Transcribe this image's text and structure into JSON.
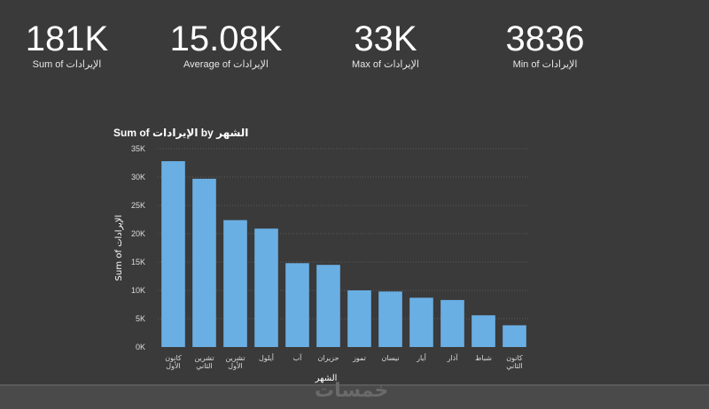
{
  "kpis": [
    {
      "value": "181K",
      "label": "Sum of الإيرادات"
    },
    {
      "value": "15.08K",
      "label": "Average of الإيرادات"
    },
    {
      "value": "33K",
      "label": "Max of الإيرادات"
    },
    {
      "value": "3836",
      "label": "Min of الإيرادات"
    }
  ],
  "watermark": "خمسات",
  "colors": {
    "bar": "#6aafe4",
    "background": "#3a3a3a",
    "grid": "#5a5a5a"
  },
  "chart_data": {
    "type": "bar",
    "title": "Sum of الإيرادات by الشهر",
    "xlabel": "الشهر",
    "ylabel": "Sum of الإيرادات",
    "ylim": [
      0,
      35000
    ],
    "yticks": [
      "0K",
      "5K",
      "10K",
      "15K",
      "20K",
      "25K",
      "30K",
      "35K"
    ],
    "grid": true,
    "categories": [
      [
        "كانون",
        "الأول"
      ],
      [
        "تشرين",
        "الثاني"
      ],
      [
        "تشرين",
        "الأول"
      ],
      [
        "أيلول"
      ],
      [
        "آب"
      ],
      [
        "حزيران"
      ],
      [
        "تموز"
      ],
      [
        "نيسان"
      ],
      [
        "أيار"
      ],
      [
        "آذار"
      ],
      [
        "شباط"
      ],
      [
        "كانون",
        "الثاني"
      ]
    ],
    "values": [
      32800,
      29700,
      22400,
      20900,
      14800,
      14500,
      10000,
      9800,
      8700,
      8300,
      5600,
      3836
    ]
  }
}
